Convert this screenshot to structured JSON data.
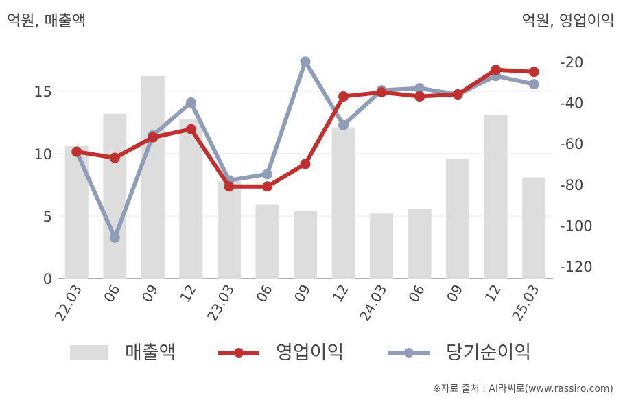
{
  "left_axis_label": "억원, 매출액",
  "right_axis_label": "억원, 영업이익",
  "source": "※자료 출처 : AI라씨로(www.rassiro.com)",
  "colors": {
    "bar": "#dddddd",
    "operating_profit": "#c0302f",
    "net_income": "#8f9db8",
    "grid": "#e8e8e8",
    "axis": "#999999"
  },
  "chart_data": {
    "type": "bar+line",
    "categories": [
      "22.03",
      "06",
      "09",
      "12",
      "23.03",
      "06",
      "09",
      "12",
      "24.03",
      "06",
      "09",
      "12",
      "25.03"
    ],
    "left_axis": {
      "ylim": [
        0,
        19
      ],
      "ticks": [
        0,
        5,
        10,
        15
      ]
    },
    "right_axis": {
      "ylim": [
        -126,
        -10
      ],
      "ticks": [
        -20,
        -40,
        -60,
        -80,
        -100,
        -120
      ]
    },
    "series": [
      {
        "name": "매출액",
        "type": "bar",
        "axis": "left",
        "values": [
          10.6,
          13.2,
          16.2,
          12.8,
          7.8,
          5.9,
          5.4,
          12.1,
          5.2,
          5.6,
          9.6,
          13.1,
          8.1
        ]
      },
      {
        "name": "영업이익",
        "type": "line",
        "axis": "right",
        "values": [
          -64,
          -67,
          -57,
          -53,
          -81,
          -81,
          -70,
          -37,
          -35,
          -37,
          -36,
          -24,
          -25
        ]
      },
      {
        "name": "당기순이익",
        "type": "line",
        "axis": "right",
        "values": [
          -64,
          -106,
          -56,
          -40,
          -78,
          -75,
          -20,
          -51,
          -34,
          -33,
          -36,
          -27,
          -31
        ]
      }
    ],
    "legend_position": "bottom",
    "grid": true
  }
}
